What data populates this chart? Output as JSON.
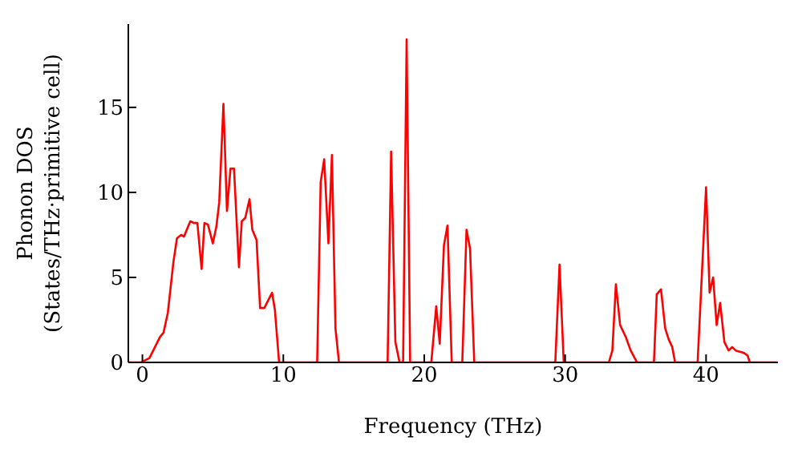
{
  "chart_data": {
    "type": "line",
    "xlabel": "Frequency (THz)",
    "ylabel": "Phonon DOS\n(States/THz·primitive cell)",
    "xlim": [
      -1,
      45.1
    ],
    "ylim": [
      0,
      19.9
    ],
    "xticks": [
      0,
      10,
      20,
      30,
      40
    ],
    "yticks": [
      0,
      5,
      10,
      15
    ],
    "grid": false,
    "legend": false,
    "marker": "none",
    "line_style": "solid",
    "series": [
      {
        "color": "#ff0000",
        "x": [
          -1,
          -0.1,
          0.5,
          1.25,
          1.5,
          1.8,
          2.2,
          2.45,
          2.75,
          2.95,
          3.25,
          3.4,
          3.65,
          3.9,
          4.2,
          4.4,
          4.65,
          5.0,
          5.25,
          5.45,
          5.75,
          6.0,
          6.25,
          6.5,
          6.85,
          7.05,
          7.3,
          7.6,
          7.8,
          8.1,
          8.35,
          8.65,
          9.2,
          9.4,
          9.7,
          12.4,
          12.65,
          12.9,
          13.2,
          13.45,
          13.7,
          13.95,
          17.4,
          17.65,
          17.95,
          18.25,
          18.5,
          18.75,
          19.0,
          20.5,
          20.85,
          21.1,
          21.4,
          21.65,
          21.95,
          22.7,
          23.0,
          23.25,
          23.55,
          29.3,
          29.6,
          29.9,
          33.1,
          33.35,
          33.6,
          33.9,
          34.3,
          34.65,
          35.1,
          36.3,
          36.5,
          36.8,
          37.1,
          37.35,
          37.6,
          37.8,
          39.4,
          40.0,
          40.25,
          40.5,
          40.75,
          41.0,
          41.3,
          41.6,
          41.85,
          42.1,
          42.7,
          42.95,
          43.1,
          45.1
        ],
        "values": [
          0,
          0,
          0.25,
          1.5,
          1.75,
          2.9,
          5.9,
          7.3,
          7.5,
          7.4,
          8.0,
          8.3,
          8.2,
          8.2,
          5.5,
          8.2,
          8.1,
          7.0,
          8.0,
          9.4,
          15.2,
          8.9,
          11.4,
          11.4,
          5.6,
          8.3,
          8.5,
          9.6,
          7.8,
          7.2,
          3.2,
          3.2,
          4.1,
          3.1,
          0,
          0,
          10.6,
          11.95,
          7.0,
          12.2,
          2.0,
          0,
          0,
          12.4,
          1.2,
          0,
          0,
          19.0,
          0,
          0,
          3.3,
          1.1,
          6.9,
          8.05,
          0,
          0,
          7.8,
          6.7,
          0,
          0,
          5.75,
          0,
          0,
          0.7,
          4.6,
          2.2,
          1.5,
          0.7,
          0,
          0,
          4.0,
          4.3,
          2.0,
          1.35,
          0.9,
          0,
          0,
          10.3,
          4.1,
          5.0,
          2.2,
          3.5,
          1.2,
          0.7,
          0.9,
          0.7,
          0.55,
          0.4,
          0,
          0
        ]
      }
    ]
  }
}
